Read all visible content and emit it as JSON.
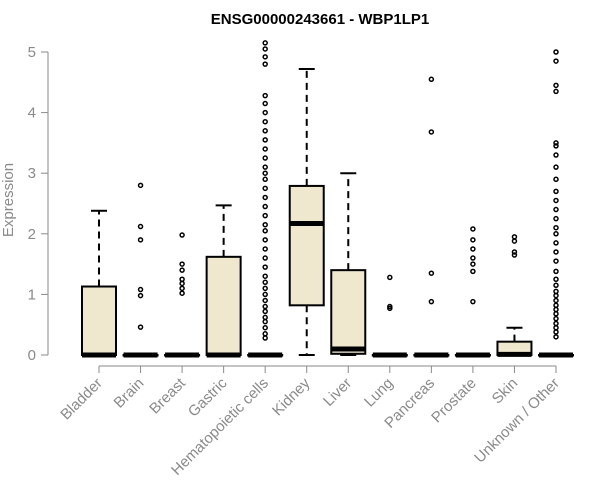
{
  "chart_data": {
    "type": "box",
    "title": "ENSG00000243661 - WBP1LP1",
    "xlabel": "",
    "ylabel": "Expression",
    "ylim": [
      0,
      5.15
    ],
    "yticks": [
      "0",
      "1",
      "2",
      "3",
      "4",
      "5"
    ],
    "colors": {
      "box_fill": "#efe8cf",
      "stroke": "#000000",
      "axis": "#8a8a8a"
    },
    "categories": [
      "Bladder",
      "Brain",
      "Breast",
      "Gastric",
      "Hematopoietic cells",
      "Kidney",
      "Liver",
      "Lung",
      "Pancreas",
      "Prostate",
      "Skin",
      "Unknown / Other"
    ],
    "boxes": [
      {
        "category": "Bladder",
        "min": 0,
        "q1": 0,
        "median": 0,
        "q3": 1.13,
        "max": 2.38,
        "outliers": []
      },
      {
        "category": "Brain",
        "min": 0,
        "q1": 0,
        "median": 0,
        "q3": 0,
        "max": 0,
        "outliers": [
          0.46,
          0.98,
          1.08,
          1.9,
          2.12,
          2.8
        ]
      },
      {
        "category": "Breast",
        "min": 0,
        "q1": 0,
        "median": 0,
        "q3": 0,
        "max": 0,
        "outliers": [
          1.02,
          1.1,
          1.18,
          1.25,
          1.4,
          1.5,
          1.98
        ]
      },
      {
        "category": "Gastric",
        "min": 0,
        "q1": 0,
        "median": 0,
        "q3": 1.62,
        "max": 2.47,
        "outliers": []
      },
      {
        "category": "Hematopoietic cells",
        "min": 0,
        "q1": 0,
        "median": 0,
        "q3": 0,
        "max": 0,
        "outliers": [
          0.28,
          0.35,
          0.45,
          0.55,
          0.62,
          0.72,
          0.8,
          0.9,
          1.0,
          1.1,
          1.2,
          1.3,
          1.45,
          1.6,
          1.75,
          1.9,
          2.05,
          2.15,
          2.3,
          2.45,
          2.6,
          2.75,
          2.9,
          3.0,
          3.1,
          3.25,
          3.4,
          3.55,
          3.7,
          3.85,
          4.0,
          4.15,
          4.28,
          4.8,
          4.92,
          5.05,
          5.15
        ]
      },
      {
        "category": "Kidney",
        "min": 0,
        "q1": 0.82,
        "median": 2.17,
        "q3": 2.79,
        "max": 4.72,
        "outliers": []
      },
      {
        "category": "Liver",
        "min": 0,
        "q1": 0.02,
        "median": 0.1,
        "q3": 1.4,
        "max": 3.0,
        "outliers": []
      },
      {
        "category": "Lung",
        "min": 0,
        "q1": 0,
        "median": 0,
        "q3": 0,
        "max": 0,
        "outliers": [
          0.77,
          0.8,
          1.28
        ]
      },
      {
        "category": "Pancreas",
        "min": 0,
        "q1": 0,
        "median": 0,
        "q3": 0,
        "max": 0,
        "outliers": [
          0.88,
          1.35,
          3.68,
          4.55
        ]
      },
      {
        "category": "Prostate",
        "min": 0,
        "q1": 0,
        "median": 0,
        "q3": 0,
        "max": 0,
        "outliers": [
          0.88,
          1.38,
          1.5,
          1.6,
          1.75,
          1.9,
          2.08
        ]
      },
      {
        "category": "Skin",
        "min": 0,
        "q1": 0,
        "median": 0.01,
        "q3": 0.22,
        "max": 0.45,
        "outliers": [
          1.65,
          1.7,
          1.88,
          1.95
        ]
      },
      {
        "category": "Unknown / Other",
        "min": 0,
        "q1": 0,
        "median": 0,
        "q3": 0,
        "max": 0,
        "outliers": [
          0.3,
          0.38,
          0.45,
          0.52,
          0.6,
          0.68,
          0.75,
          0.82,
          0.9,
          0.98,
          1.05,
          1.15,
          1.25,
          1.38,
          1.55,
          1.7,
          1.85,
          2.0,
          2.1,
          2.25,
          2.4,
          2.55,
          2.7,
          2.9,
          3.1,
          3.3,
          3.45,
          3.5,
          4.35,
          4.45,
          4.85,
          5.0
        ]
      }
    ]
  }
}
